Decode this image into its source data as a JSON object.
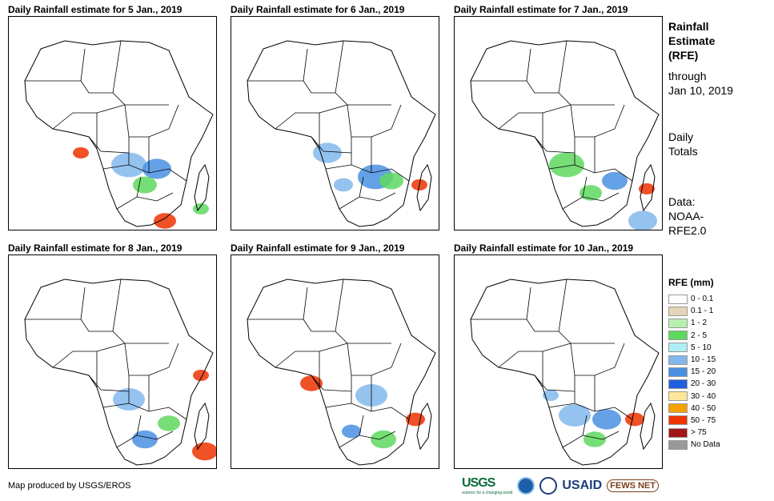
{
  "panels": [
    {
      "title": "Daily Rainfall estimate for 5 Jan., 2019"
    },
    {
      "title": "Daily Rainfall estimate for 6 Jan., 2019"
    },
    {
      "title": "Daily Rainfall estimate for 7 Jan., 2019"
    },
    {
      "title": "Daily Rainfall estimate for 8 Jan., 2019"
    },
    {
      "title": "Daily Rainfall estimate for 9 Jan., 2019"
    },
    {
      "title": "Daily Rainfall estimate for 10 Jan., 2019"
    }
  ],
  "side": {
    "heading": [
      "Rainfall",
      "Estimate",
      "(RFE)"
    ],
    "through": [
      "through",
      "Jan 10, 2019"
    ],
    "totals": [
      "Daily",
      "Totals"
    ],
    "data": [
      "Data:",
      "NOAA-",
      "RFE2.0"
    ]
  },
  "legend": {
    "title": "RFE (mm)",
    "items": [
      {
        "label": "0 - 0.1",
        "color": "#ffffff"
      },
      {
        "label": "0.1 - 1",
        "color": "#e6d4b8"
      },
      {
        "label": "1 - 2",
        "color": "#b8f0b0"
      },
      {
        "label": "2 - 5",
        "color": "#5fd85f"
      },
      {
        "label": "5 - 10",
        "color": "#b0eef5"
      },
      {
        "label": "10 - 15",
        "color": "#82b8ec"
      },
      {
        "label": "15 - 20",
        "color": "#4a90e2"
      },
      {
        "label": "20 - 30",
        "color": "#1f5fe0"
      },
      {
        "label": "30 - 40",
        "color": "#fde79a"
      },
      {
        "label": "40 - 50",
        "color": "#f5a200"
      },
      {
        "label": "50 - 75",
        "color": "#ee3300"
      },
      {
        "label": "> 75",
        "color": "#a01515"
      },
      {
        "label": "No Data",
        "color": "#999999"
      }
    ]
  },
  "credit": "Map produced by USGS/EROS",
  "logos": {
    "usgs": "USGS",
    "usgs_tag": "science for a changing world",
    "usaid": "USAID",
    "fews": "FEWS NET"
  }
}
